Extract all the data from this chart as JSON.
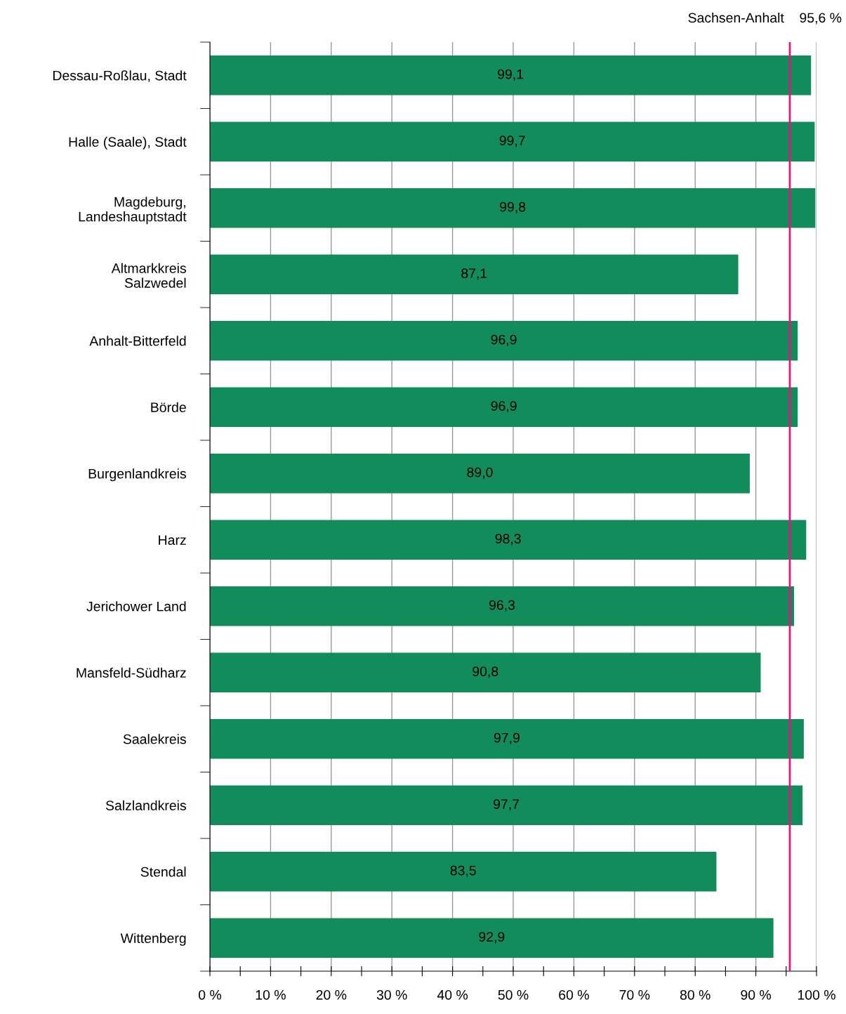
{
  "chart_data": {
    "type": "bar",
    "orientation": "horizontal",
    "categories": [
      "Dessau-Roßlau, Stadt",
      "Halle (Saale), Stadt",
      "Magdeburg,\nLandeshauptstadt",
      "Altmarkkreis\nSalzwedel",
      "Anhalt-Bitterfeld",
      "Börde",
      "Burgenlandkreis",
      "Harz",
      "Jerichower Land",
      "Mansfeld-Südharz",
      "Saalekreis",
      "Salzlandkreis",
      "Stendal",
      "Wittenberg"
    ],
    "values": [
      99.1,
      99.7,
      99.8,
      87.1,
      96.9,
      96.9,
      89.0,
      98.3,
      96.3,
      90.8,
      97.9,
      97.7,
      83.5,
      92.9
    ],
    "value_labels": [
      "99,1",
      "99,7",
      "99,8",
      "87,1",
      "96,9",
      "96,9",
      "89,0",
      "98,3",
      "96,3",
      "90,8",
      "97,9",
      "97,7",
      "83,5",
      "92,9"
    ],
    "color": "#128c5a",
    "xlim": [
      0,
      100
    ],
    "xticks": [
      {
        "value": 0,
        "label": "0 %"
      },
      {
        "value": 5,
        "label": null
      },
      {
        "value": 10,
        "label": "10 %"
      },
      {
        "value": 15,
        "label": null
      },
      {
        "value": 20,
        "label": "20 %"
      },
      {
        "value": 25,
        "label": null
      },
      {
        "value": 30,
        "label": "30 %"
      },
      {
        "value": 35,
        "label": null
      },
      {
        "value": 40,
        "label": "40 %"
      },
      {
        "value": 45,
        "label": null
      },
      {
        "value": 50,
        "label": "50 %"
      },
      {
        "value": 55,
        "label": null
      },
      {
        "value": 60,
        "label": "60 %"
      },
      {
        "value": 65,
        "label": null
      },
      {
        "value": 70,
        "label": "70 %"
      },
      {
        "value": 75,
        "label": null
      },
      {
        "value": 80,
        "label": "80 %"
      },
      {
        "value": 85,
        "label": null
      },
      {
        "value": 90,
        "label": "90 %"
      },
      {
        "value": 95,
        "label": null
      },
      {
        "value": 100,
        "label": "100 %"
      }
    ],
    "grid": "x",
    "ref_lines": [
      {
        "axis": "x",
        "value": 95.6,
        "label": "Sachsen-Anhalt    95,6 %",
        "color": "#e2177e"
      }
    ]
  }
}
